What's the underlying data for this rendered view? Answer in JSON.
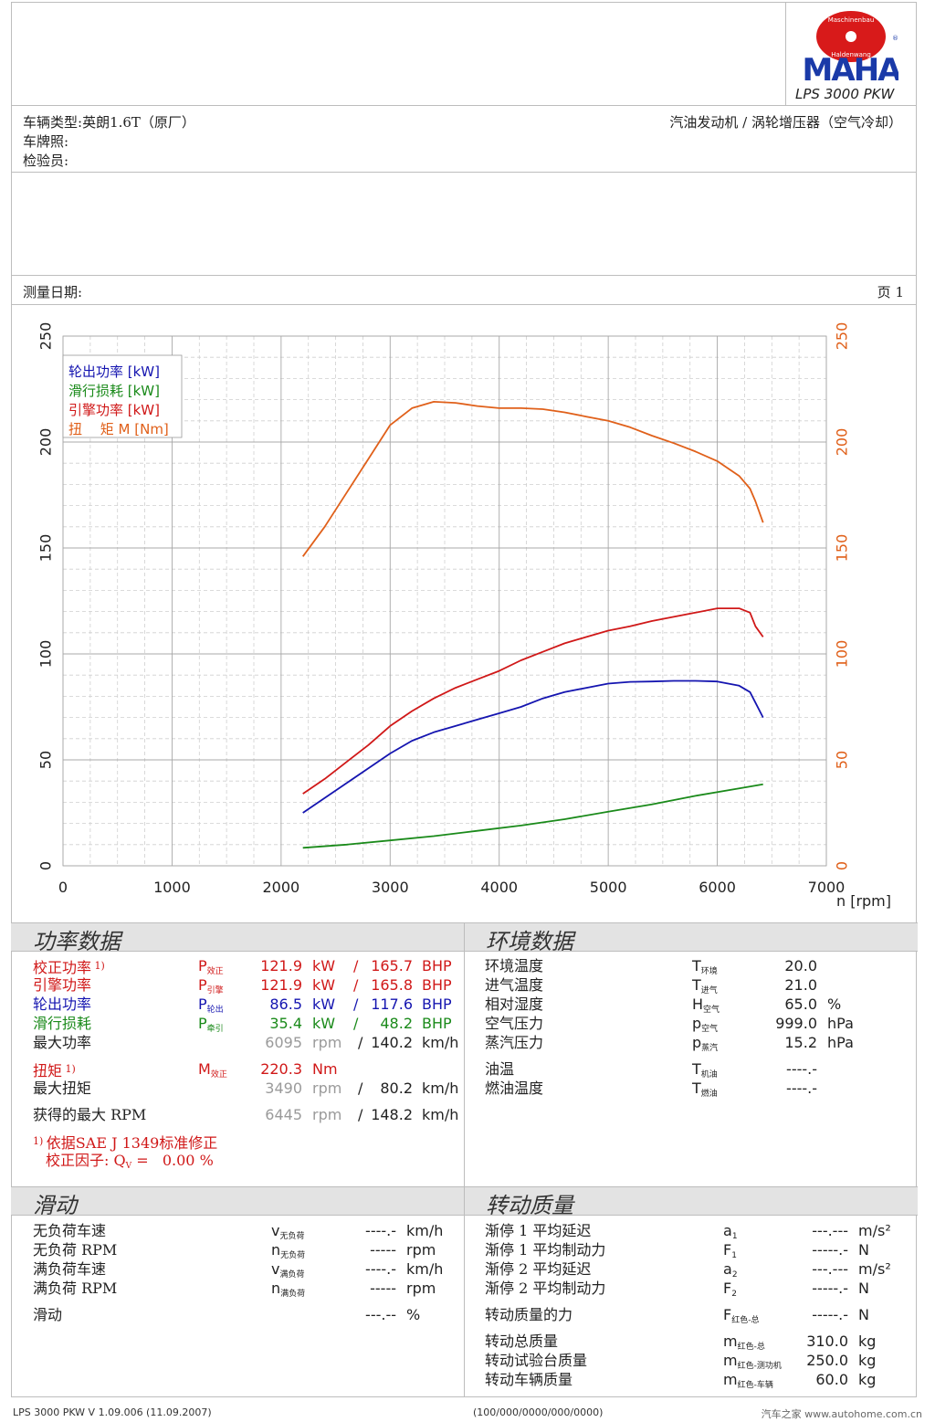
{
  "header": {
    "brand_top": "Maschinenbau",
    "brand_bottom": "Haldenwang",
    "brand_name": "MAHA",
    "product": "LPS 3000 PKW"
  },
  "vehicle": {
    "type_label": "车辆类型:",
    "type_value": "英朗1.6T（原厂）",
    "plate_label": "车牌照:",
    "inspector_label": "检验员:",
    "engine": "汽油发动机 / 涡轮增压器（空气冷却）"
  },
  "date": {
    "label": "测量日期:",
    "page_label": "页",
    "page_num": "1"
  },
  "colors": {
    "wheel": "#1515b0",
    "drag": "#1a8a1a",
    "engine": "#d01818",
    "torque": "#e0601a"
  },
  "chart_data": {
    "type": "line",
    "xlabel": "n [rpm]",
    "xlim": [
      0,
      7000
    ],
    "ylim": [
      0,
      250
    ],
    "x_ticks": [
      "0",
      "1000",
      "2000",
      "3000",
      "4000",
      "5000",
      "6000",
      "7000"
    ],
    "y_ticks": [
      "0",
      "50",
      "100",
      "150",
      "200",
      "250"
    ],
    "grid": true,
    "legend_position": "top-left",
    "legend": [
      {
        "name": "轮出功率",
        "unit": "[kW]"
      },
      {
        "name": "滑行损耗",
        "unit": "[kW]"
      },
      {
        "name": "引擎功率",
        "unit": "[kW]"
      },
      {
        "name": "扭　 矩 M",
        "unit": "[Nm]"
      }
    ],
    "series": [
      {
        "name": "轮出功率 [kW]",
        "color": "#1515b0",
        "x": [
          2200,
          2400,
          2600,
          2800,
          3000,
          3200,
          3400,
          3600,
          3800,
          4000,
          4200,
          4400,
          4600,
          4800,
          5000,
          5200,
          5400,
          5600,
          5800,
          6000,
          6200,
          6300,
          6350,
          6420
        ],
        "y": [
          25,
          32,
          39,
          46,
          53,
          59,
          63,
          66,
          69,
          72,
          75,
          79,
          82,
          84,
          86,
          86.8,
          87,
          87.3,
          87.3,
          87,
          85,
          82,
          77,
          70
        ]
      },
      {
        "name": "滑行损耗 [kW]",
        "color": "#1a8a1a",
        "x": [
          2200,
          2600,
          3000,
          3400,
          3800,
          4200,
          4600,
          5000,
          5400,
          5800,
          6200,
          6420
        ],
        "y": [
          8.5,
          10,
          12,
          14,
          16.5,
          19,
          22,
          25.5,
          29,
          33,
          36.5,
          38.5
        ]
      },
      {
        "name": "引擎功率 [kW]",
        "color": "#d01818",
        "x": [
          2200,
          2400,
          2600,
          2800,
          3000,
          3200,
          3400,
          3600,
          3800,
          4000,
          4200,
          4400,
          4600,
          4800,
          5000,
          5200,
          5400,
          5600,
          5800,
          6000,
          6200,
          6300,
          6350,
          6420
        ],
        "y": [
          34,
          41,
          49,
          57,
          66,
          73,
          79,
          84,
          88,
          92,
          97,
          101,
          105,
          108,
          111,
          113,
          115.5,
          117.5,
          119.5,
          121.5,
          121.5,
          119.5,
          113,
          108
        ]
      },
      {
        "name": "扭矩 M [Nm]",
        "color": "#e0601a",
        "x": [
          2200,
          2400,
          2600,
          2800,
          3000,
          3200,
          3400,
          3600,
          3800,
          4000,
          4200,
          4400,
          4600,
          4800,
          5000,
          5200,
          5400,
          5600,
          5800,
          6000,
          6200,
          6300,
          6350,
          6420
        ],
        "y": [
          146,
          160,
          176,
          192,
          208,
          216,
          219,
          218.5,
          217,
          216,
          216,
          215.5,
          214,
          212,
          210,
          207,
          203,
          199.5,
          195.5,
          191,
          184,
          178,
          172,
          162
        ]
      }
    ]
  },
  "power": {
    "title": "功率数据",
    "rows": [
      {
        "label": "校正功率",
        "note": "1)",
        "sym": "P",
        "sub": "效正",
        "v1": "121.9",
        "u1": "kW",
        "sep": "/",
        "v2": "165.7",
        "u2": "BHP"
      },
      {
        "label": "引擎功率",
        "sym": "P",
        "sub": "引擎",
        "v1": "121.9",
        "u1": "kW",
        "sep": "/",
        "v2": "165.8",
        "u2": "BHP"
      },
      {
        "label": "轮出功率",
        "sym": "P",
        "sub": "轮出",
        "v1": "86.5",
        "u1": "kW",
        "sep": "/",
        "v2": "117.6",
        "u2": "BHP"
      },
      {
        "label": "滑行损耗",
        "sym": "P",
        "sub": "牵引",
        "v1": "35.4",
        "u1": "kW",
        "sep": "/",
        "v2": "48.2",
        "u2": "BHP"
      }
    ],
    "max_power": {
      "label": "最大功率",
      "rpm": "6095",
      "rpm_unit": "rpm",
      "sep": "/",
      "speed": "140.2",
      "speed_unit": "km/h"
    },
    "torque": {
      "label": "扭矩",
      "note": "1)",
      "sym": "M",
      "sub": "效正",
      "value": "220.3",
      "unit": "Nm"
    },
    "max_torque": {
      "label": "最大扭矩",
      "rpm": "3490",
      "rpm_unit": "rpm",
      "sep": "/",
      "speed": "80.2",
      "speed_unit": "km/h"
    },
    "max_rpm": {
      "label": "获得的最大 RPM",
      "rpm": "6445",
      "rpm_unit": "rpm",
      "sep": "/",
      "speed": "148.2",
      "speed_unit": "km/h"
    },
    "footnote1_mark": "1)",
    "footnote1": "依据SAE J 1349标准修正",
    "footnote2_label": "校正因子: Q",
    "footnote2_sub": "V",
    "footnote2_value": "=   0.00 %"
  },
  "env": {
    "title": "环境数据",
    "rows": [
      {
        "label": "环境温度",
        "sym": "T",
        "sub": "环境",
        "value": "20.0",
        "unit": ""
      },
      {
        "label": "进气温度",
        "sym": "T",
        "sub": "进气",
        "value": "21.0",
        "unit": ""
      },
      {
        "label": "相对湿度",
        "sym": "H",
        "sub": "空气",
        "value": "65.0",
        "unit": "%"
      },
      {
        "label": "空气压力",
        "sym": "p",
        "sub": "空气",
        "value": "999.0",
        "unit": "hPa"
      },
      {
        "label": "蒸汽压力",
        "sym": "p",
        "sub": "蒸汽",
        "value": "15.2",
        "unit": "hPa"
      },
      {
        "label": "油温",
        "sym": "T",
        "sub": "机油",
        "value": "----.-",
        "unit": ""
      },
      {
        "label": "燃油温度",
        "sym": "T",
        "sub": "燃油",
        "value": "----.-",
        "unit": ""
      }
    ]
  },
  "slip": {
    "title": "滑动",
    "rows": [
      {
        "label": "无负荷车速",
        "sym": "v",
        "sub": "无负荷",
        "value": "----.-",
        "unit": "km/h"
      },
      {
        "label": "无负荷 RPM",
        "sym": "n",
        "sub": "无负荷",
        "value": "-----",
        "unit": "rpm"
      },
      {
        "label": "满负荷车速",
        "sym": "v",
        "sub": "满负荷",
        "value": "----.-",
        "unit": "km/h"
      },
      {
        "label": "满负荷 RPM",
        "sym": "n",
        "sub": "满负荷",
        "value": "-----",
        "unit": "rpm"
      },
      {
        "label": "滑动",
        "sym": "",
        "sub": "",
        "value": "---.--",
        "unit": "%"
      }
    ]
  },
  "inertia": {
    "title": "转动质量",
    "rows": [
      {
        "label": "渐停 1 平均延迟",
        "sym": "a",
        "sub": "1",
        "value": "---.---",
        "unit": "m/s²"
      },
      {
        "label": "渐停 1 平均制动力",
        "sym": "F",
        "sub": "1",
        "value": "-----.-",
        "unit": "N"
      },
      {
        "label": "渐停 2 平均延迟",
        "sym": "a",
        "sub": "2",
        "value": "---.---",
        "unit": "m/s²"
      },
      {
        "label": "渐停 2 平均制动力",
        "sym": "F",
        "sub": "2",
        "value": "-----.-",
        "unit": "N"
      },
      {
        "label": "转动质量的力",
        "sym": "F",
        "sub": "红色-总",
        "value": "-----.-",
        "unit": "N"
      },
      {
        "label": "转动总质量",
        "sym": "m",
        "sub": "红色-总",
        "value": "310.0",
        "unit": "kg"
      },
      {
        "label": "转动试验台质量",
        "sym": "m",
        "sub": "红色-测功机",
        "value": "250.0",
        "unit": "kg"
      },
      {
        "label": "转动车辆质量",
        "sym": "m",
        "sub": "红色-车辆",
        "value": "60.0",
        "unit": "kg"
      }
    ]
  },
  "footer": {
    "left": "LPS 3000 PKW V 1.09.006 (11.09.2007)",
    "center": "(100/000/0000/000/0000)",
    "right": "汽车之家 www.autohome.com.cn"
  }
}
